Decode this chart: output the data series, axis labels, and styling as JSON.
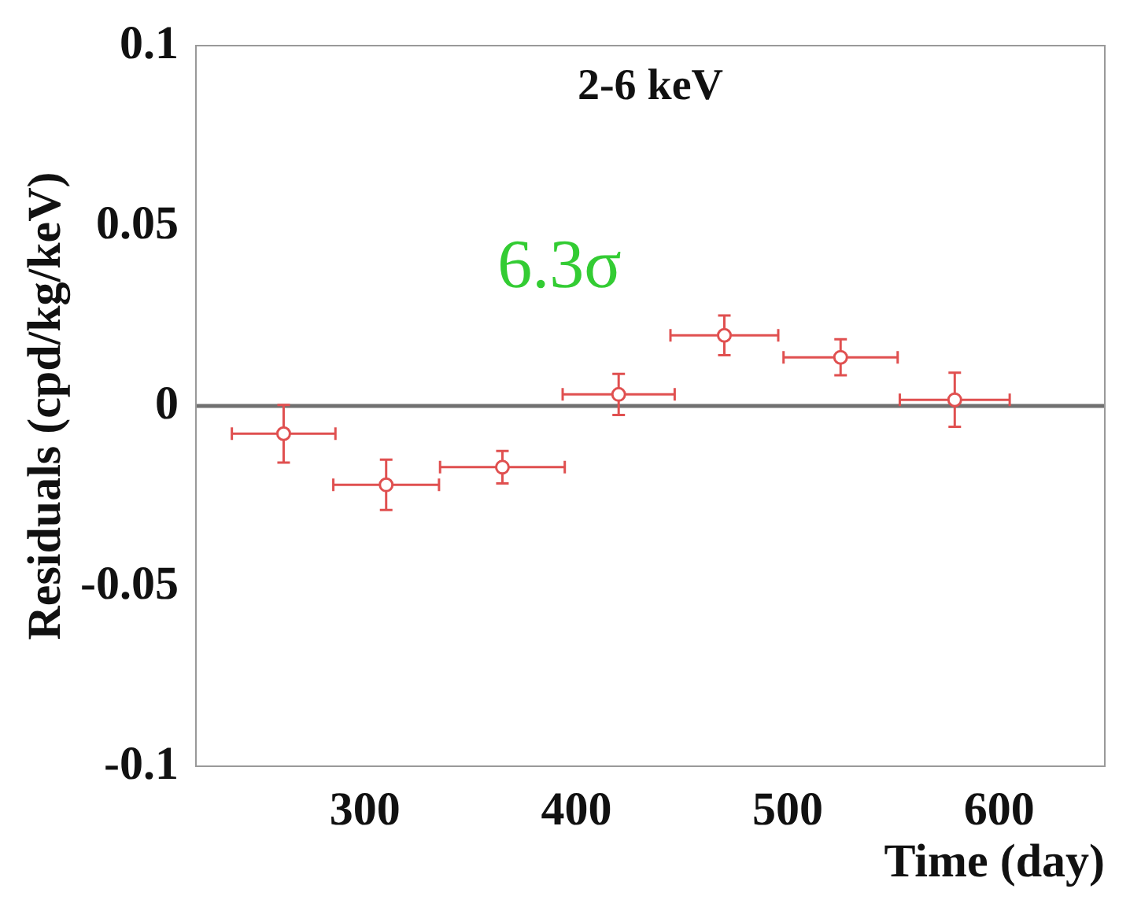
{
  "chart_data": {
    "type": "scatter",
    "title": "2-6 keV",
    "xlabel": "Time (day)",
    "ylabel": "Residuals (cpd/kg/keV)",
    "annotations": [
      "6.3σ"
    ],
    "x": [
      261.5,
      310,
      365,
      420,
      470,
      525,
      579
    ],
    "series": [
      {
        "color": "#e05050",
        "values": [
          -0.0077,
          -0.0219,
          -0.017,
          0.0032,
          0.0196,
          0.0135,
          0.0017
        ],
        "errors": [
          0.008,
          0.007,
          0.0045,
          0.0057,
          0.0055,
          0.005,
          0.0075
        ],
        "xerrors": [
          24.5,
          25,
          29.5,
          26.5,
          25.5,
          27,
          26
        ]
      }
    ],
    "xlim": [
      220,
      650
    ],
    "xticks": [
      300,
      400,
      500,
      600
    ],
    "ylim": [
      -0.1,
      0.1
    ],
    "yticks": [
      -0.1,
      -0.05,
      0,
      0.05,
      0.1
    ],
    "ref_lines": [
      {
        "axis": "y",
        "value": 0,
        "color": "#707070"
      }
    ],
    "marker": "circle",
    "grid": false,
    "legend": false
  }
}
